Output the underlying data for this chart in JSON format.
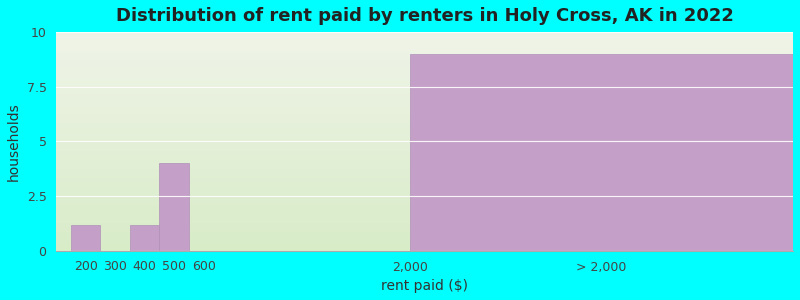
{
  "title": "Distribution of rent paid by renters in Holy Cross, AK in 2022",
  "xlabel": "rent paid ($)",
  "ylabel": "households",
  "background_color": "#00FFFF",
  "plot_bg_color_top": "#f0f4e8",
  "plot_bg_color_bottom": "#d8ecc8",
  "bar_color": "#c4a0c8",
  "bar_edge_color": "#b090b8",
  "categories": [
    "200",
    "300",
    "400",
    "500",
    "600",
    "2,000",
    "> 2,000"
  ],
  "bar_positions": [
    0.04,
    0.08,
    0.12,
    0.16,
    0.2,
    0.48,
    0.74
  ],
  "bar_widths": [
    0.04,
    0.04,
    0.04,
    0.04,
    0.04,
    0.04,
    0.52
  ],
  "values": [
    1.2,
    0,
    1.2,
    4.0,
    0,
    0,
    9.0
  ],
  "ylim": [
    0,
    10
  ],
  "yticks": [
    0,
    2.5,
    5,
    7.5,
    10
  ],
  "title_fontsize": 13,
  "axis_fontsize": 9,
  "label_fontsize": 10
}
